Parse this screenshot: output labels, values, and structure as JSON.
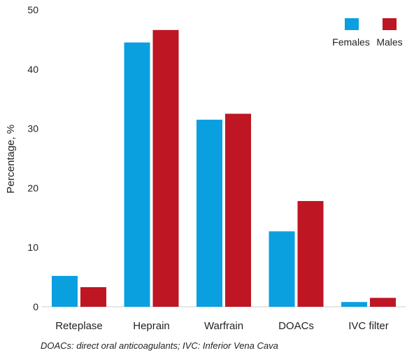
{
  "chart_data": {
    "type": "bar",
    "title": "",
    "xlabel": "",
    "ylabel": "Percentage, %",
    "ylim": [
      0,
      50
    ],
    "yticks": [
      0,
      10,
      20,
      30,
      40,
      50
    ],
    "categories": [
      "Reteplase",
      "Heprain",
      "Warfrain",
      "DOACs",
      "IVC filter"
    ],
    "series": [
      {
        "name": "Females",
        "color": "#0aa0e0",
        "values": [
          5.2,
          44.5,
          31.5,
          12.7,
          0.8
        ]
      },
      {
        "name": "Males",
        "color": "#be1622",
        "values": [
          3.3,
          46.6,
          32.5,
          17.8,
          1.5
        ]
      }
    ],
    "legend_position": "top-right",
    "grid": false
  },
  "footnote": "DOACs: direct oral anticoagulants; IVC: Inferior Vena Cava"
}
